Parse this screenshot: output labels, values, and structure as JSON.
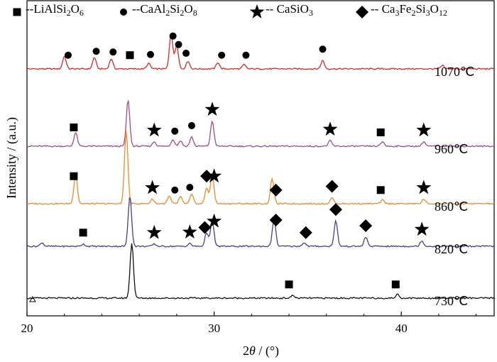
{
  "chart_data": {
    "type": "line",
    "title": "",
    "xlabel_prefix": "2",
    "xlabel_var": "θ",
    "xlabel_unit": " / (°)",
    "ylabel": "Intensity / (a.u.)",
    "xlim": [
      20,
      45
    ],
    "x_ticks": [
      20,
      30,
      40
    ],
    "legend": [
      {
        "marker": "square",
        "prefix": "--LiAlSi",
        "s1": "2",
        "mid": "O",
        "s2": "6"
      },
      {
        "marker": "circle",
        "prefix": "--CaAl",
        "s1": "2",
        "mid": "Si",
        "s2": "2",
        "mid2": "O",
        "s3": "8"
      },
      {
        "marker": "star",
        "prefix": "-- CaSiO",
        "s1": "3"
      },
      {
        "marker": "diamond",
        "prefix": "-- Ca",
        "s1": "3",
        "mid": "Fe",
        "s2": "2",
        "mid2": "Si",
        "s3": "3",
        "mid3": "O",
        "s4": "12"
      }
    ],
    "series": [
      {
        "name": "1070℃",
        "color": "#d42a2a",
        "peaks": [
          [
            22.0,
            0.28
          ],
          [
            23.6,
            0.25
          ],
          [
            24.5,
            0.22
          ],
          [
            26.5,
            0.12
          ],
          [
            27.7,
            0.78
          ],
          [
            28.0,
            0.52
          ],
          [
            28.6,
            0.17
          ],
          [
            30.2,
            0.14
          ],
          [
            31.6,
            0.09
          ],
          [
            35.8,
            0.18
          ],
          [
            42.2,
            0.07
          ]
        ],
        "markers": [
          {
            "type": "circle",
            "x": 22.2
          },
          {
            "type": "circle",
            "x": 23.7
          },
          {
            "type": "circle",
            "x": 24.6
          },
          {
            "type": "circle",
            "x": 26.6
          },
          {
            "type": "circle",
            "x": 27.8
          },
          {
            "type": "circle",
            "x": 28.1
          },
          {
            "type": "circle",
            "x": 28.5
          },
          {
            "type": "circle",
            "x": 30.4
          },
          {
            "type": "circle",
            "x": 31.7
          },
          {
            "type": "circle",
            "x": 35.8
          },
          {
            "type": "square",
            "x": 25.5
          }
        ]
      },
      {
        "name": "960℃",
        "color": "#9c4d8f",
        "peaks": [
          [
            22.6,
            0.3
          ],
          [
            25.4,
            1.0
          ],
          [
            26.8,
            0.1
          ],
          [
            27.8,
            0.15
          ],
          [
            28.2,
            0.12
          ],
          [
            28.8,
            0.2
          ],
          [
            29.9,
            0.55
          ],
          [
            36.2,
            0.12
          ],
          [
            39.0,
            0.1
          ],
          [
            41.2,
            0.1
          ]
        ],
        "markers": [
          {
            "type": "square",
            "x": 22.5
          },
          {
            "type": "star",
            "x": 26.8
          },
          {
            "type": "circle",
            "x": 27.9
          },
          {
            "type": "circle",
            "x": 28.8
          },
          {
            "type": "star",
            "x": 29.9
          },
          {
            "type": "star",
            "x": 36.2
          },
          {
            "type": "square",
            "x": 38.9
          },
          {
            "type": "star",
            "x": 41.2
          }
        ]
      },
      {
        "name": "860℃",
        "color": "#f0892a",
        "peaks": [
          [
            22.6,
            0.65
          ],
          [
            25.3,
            1.6
          ],
          [
            26.7,
            0.1
          ],
          [
            27.6,
            0.16
          ],
          [
            28.2,
            0.15
          ],
          [
            28.8,
            0.2
          ],
          [
            29.6,
            0.35
          ],
          [
            29.9,
            0.65
          ],
          [
            33.1,
            0.55
          ],
          [
            36.3,
            0.13
          ],
          [
            39.0,
            0.08
          ],
          [
            41.2,
            0.1
          ]
        ],
        "markers": [
          {
            "type": "square",
            "x": 22.5
          },
          {
            "type": "star",
            "x": 26.7
          },
          {
            "type": "circle",
            "x": 27.9
          },
          {
            "type": "circle",
            "x": 28.7
          },
          {
            "type": "diamond",
            "x": 29.6
          },
          {
            "type": "star",
            "x": 30.0
          },
          {
            "type": "diamond",
            "x": 33.3
          },
          {
            "type": "diamond",
            "x": 36.3
          },
          {
            "type": "square",
            "x": 38.9
          },
          {
            "type": "star",
            "x": 41.2
          }
        ]
      },
      {
        "name": "820℃",
        "color": "#4a3d8f",
        "peaks": [
          [
            20.8,
            0.08
          ],
          [
            23.0,
            0.05
          ],
          [
            25.5,
            1.1
          ],
          [
            26.8,
            0.05
          ],
          [
            28.7,
            0.06
          ],
          [
            29.6,
            0.3
          ],
          [
            29.9,
            0.55
          ],
          [
            33.2,
            0.6
          ],
          [
            34.8,
            0.08
          ],
          [
            36.5,
            0.55
          ],
          [
            38.1,
            0.2
          ],
          [
            41.1,
            0.12
          ]
        ],
        "markers": [
          {
            "type": "square",
            "x": 23.0
          },
          {
            "type": "star",
            "x": 26.8
          },
          {
            "type": "star",
            "x": 28.7
          },
          {
            "type": "diamond",
            "x": 29.5
          },
          {
            "type": "star",
            "x": 30.0
          },
          {
            "type": "diamond",
            "x": 33.3
          },
          {
            "type": "diamond",
            "x": 34.9
          },
          {
            "type": "diamond",
            "x": 36.5
          },
          {
            "type": "diamond",
            "x": 38.1
          },
          {
            "type": "star",
            "x": 41.1
          }
        ]
      },
      {
        "name": "730℃",
        "color": "#111111",
        "peaks": [
          [
            25.6,
            1.2
          ],
          [
            34.2,
            0.06
          ],
          [
            39.8,
            0.08
          ]
        ],
        "markers": [
          {
            "type": "square",
            "x": 34.0
          },
          {
            "type": "square",
            "x": 39.7
          }
        ]
      }
    ]
  }
}
